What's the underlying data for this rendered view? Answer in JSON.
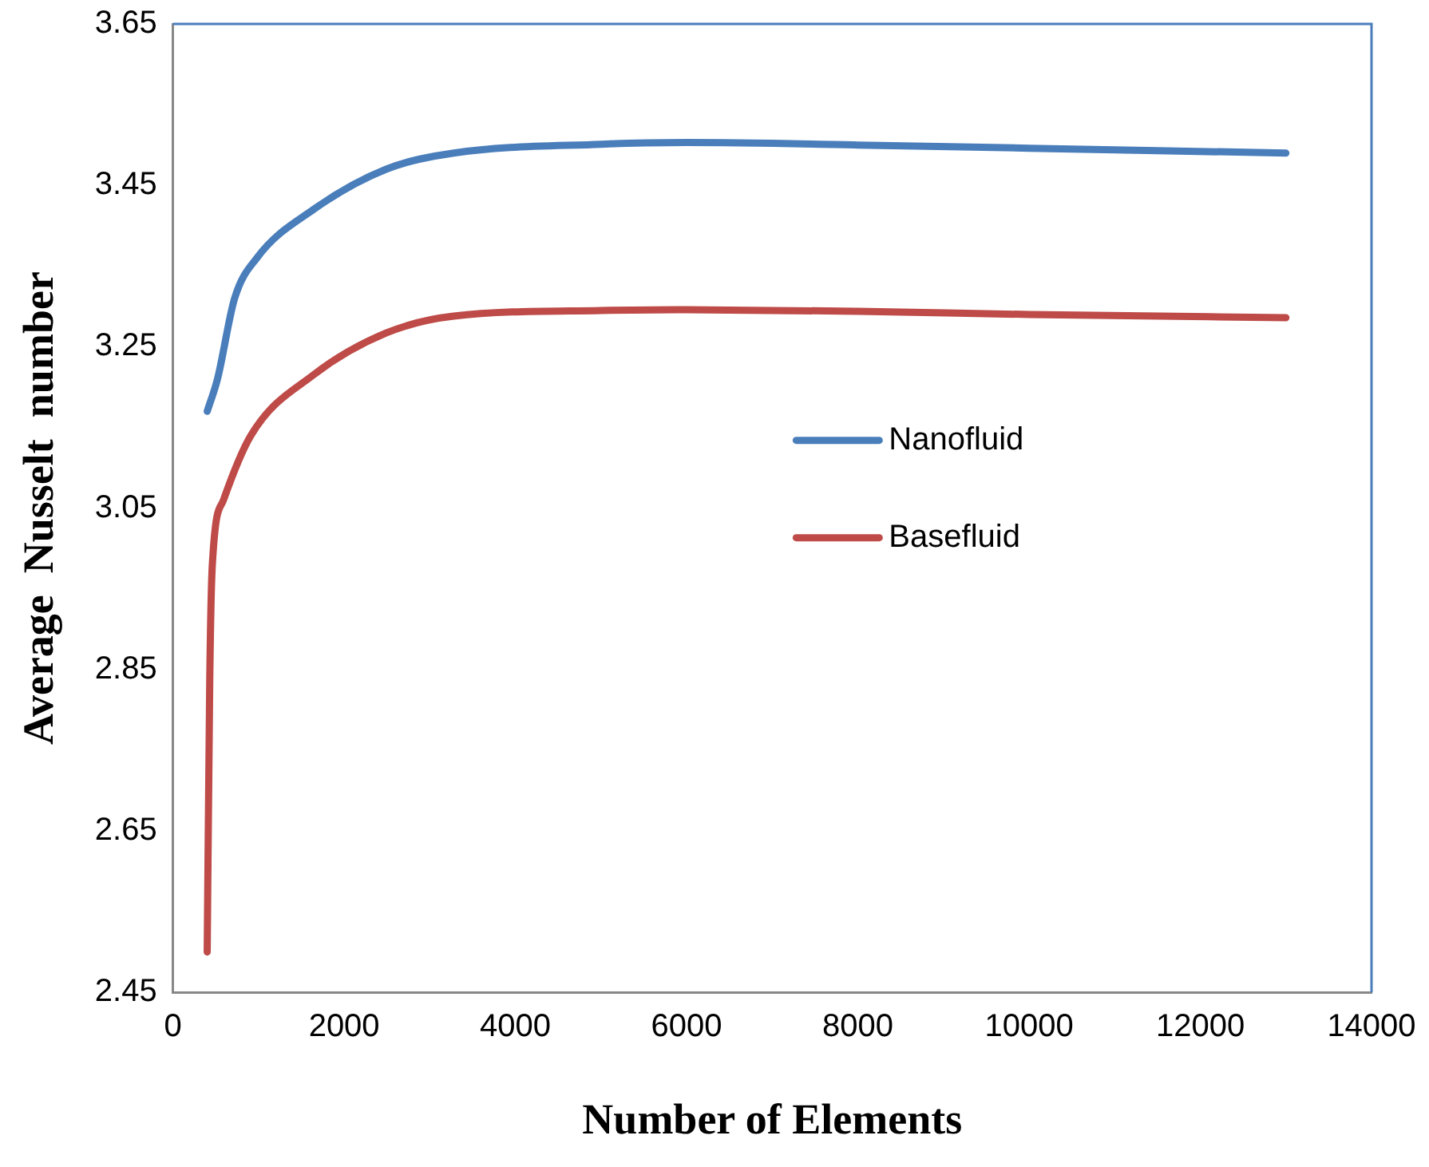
{
  "chart_data": {
    "type": "line",
    "xlabel": "Number of Elements",
    "ylabel": "Average  Nusselt  number",
    "xlim": [
      0,
      14000
    ],
    "xticks": [
      0,
      2000,
      4000,
      6000,
      8000,
      10000,
      12000,
      14000
    ],
    "ylim": [
      2.45,
      3.65
    ],
    "yticks": [
      2.45,
      2.65,
      2.85,
      3.05,
      3.25,
      3.45,
      3.65
    ],
    "grid": false,
    "legend": "right",
    "marker": "none",
    "line_style": "solid",
    "series": [
      {
        "name": "Nanofluid",
        "color": "#4a7ebb",
        "x": [
          400,
          520,
          720,
          980,
          1640,
          2490,
          3280,
          5000,
          6000,
          8000,
          10000,
          13000
        ],
        "values": [
          3.17,
          3.21,
          3.31,
          3.36,
          3.42,
          3.47,
          3.49,
          3.501,
          3.503,
          3.5,
          3.496,
          3.49
        ]
      },
      {
        "name": "Basefluid",
        "color": "#be4b48",
        "x": [
          400,
          430,
          460,
          590,
          910,
          1640,
          2490,
          3280,
          5000,
          6000,
          8000,
          10000,
          13000
        ],
        "values": [
          2.5,
          2.84,
          2.98,
          3.06,
          3.14,
          3.215,
          3.267,
          3.288,
          3.295,
          3.296,
          3.294,
          3.29,
          3.286
        ]
      }
    ]
  }
}
